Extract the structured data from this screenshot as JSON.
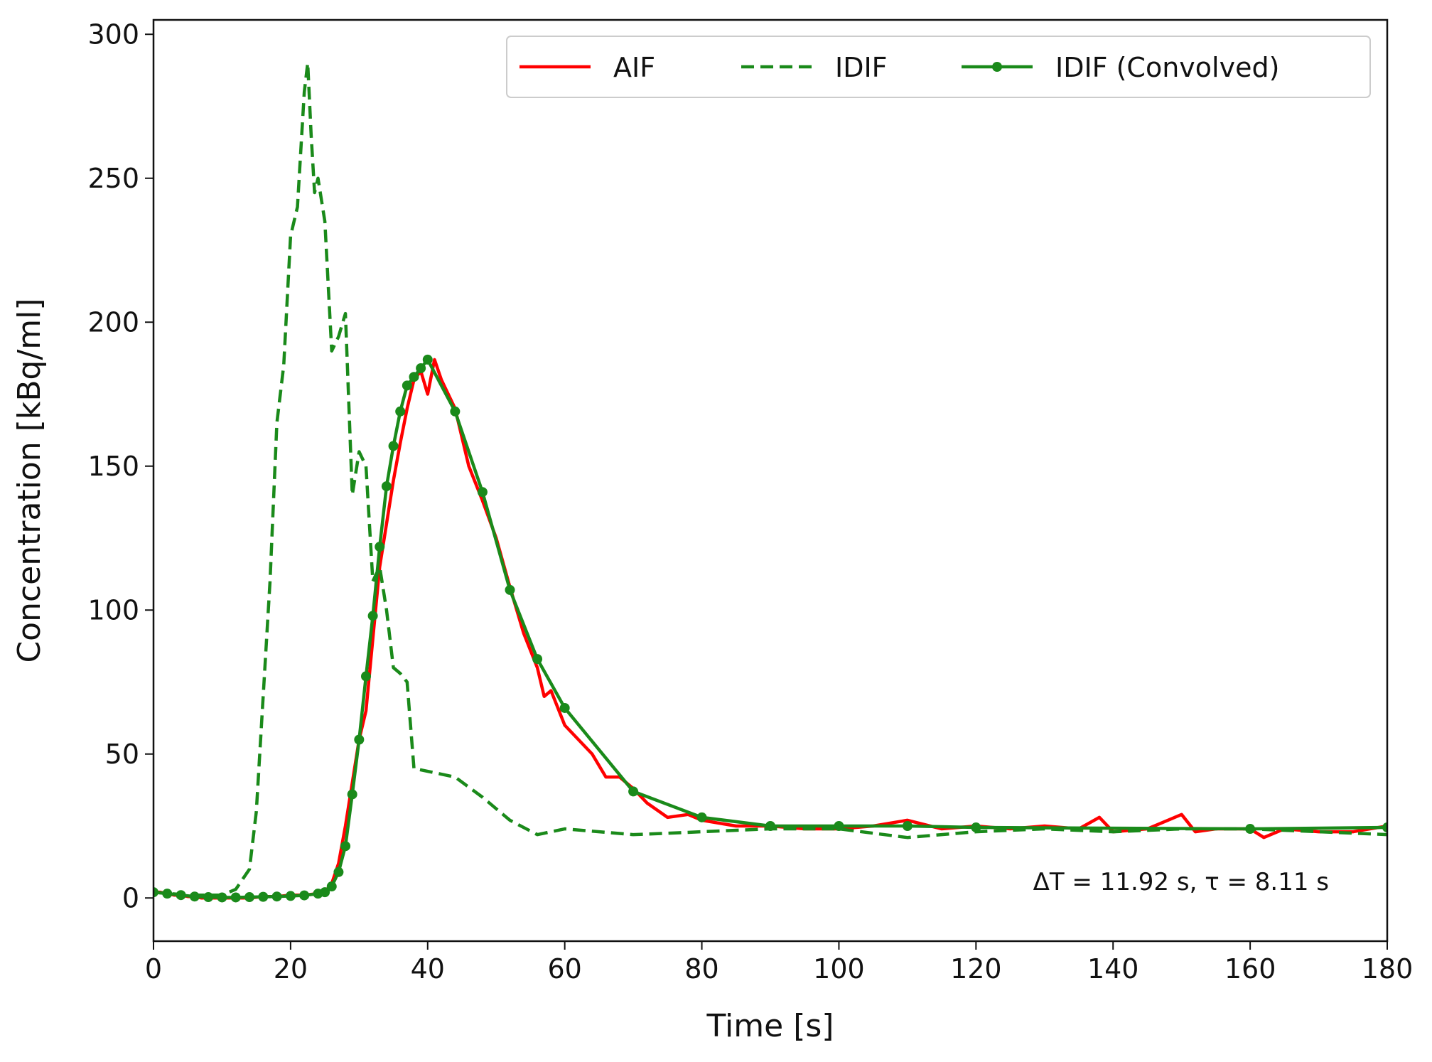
{
  "chart_data": {
    "type": "line",
    "xlabel": "Time [s]",
    "ylabel": "Concentration [kBq/ml]",
    "annotation": "ΔT = 11.92 s, τ = 8.11 s",
    "xlim": [
      0,
      180
    ],
    "ylim": [
      -15,
      305
    ],
    "xticks": [
      0,
      20,
      40,
      60,
      80,
      100,
      120,
      140,
      160,
      180
    ],
    "yticks": [
      0,
      50,
      100,
      150,
      200,
      250,
      300
    ],
    "legend": "upper right",
    "series": [
      {
        "name": "AIF",
        "color": "#ff0000",
        "style": "solid",
        "x": [
          0,
          1,
          2,
          3,
          4,
          5,
          6,
          7,
          8,
          9,
          10,
          12,
          14,
          16,
          18,
          20,
          22,
          24,
          25,
          26,
          27,
          28,
          29,
          30,
          31,
          32,
          33,
          34,
          35,
          36,
          37,
          38,
          39,
          40,
          41,
          42,
          44,
          46,
          48,
          50,
          52,
          54,
          56,
          57,
          58,
          60,
          62,
          64,
          66,
          68,
          70,
          72,
          75,
          78,
          80,
          85,
          90,
          95,
          100,
          105,
          110,
          115,
          120,
          125,
          130,
          135,
          138,
          140,
          145,
          150,
          152,
          155,
          160,
          162,
          165,
          170,
          175,
          180
        ],
        "values": [
          2,
          2,
          1.5,
          1,
          1,
          0.5,
          0.5,
          0,
          0,
          0,
          0,
          0,
          0,
          0.5,
          0.5,
          1,
          1,
          1.5,
          2,
          5,
          12,
          25,
          40,
          55,
          65,
          90,
          115,
          130,
          145,
          158,
          170,
          180,
          183,
          175,
          187,
          180,
          170,
          150,
          138,
          125,
          108,
          92,
          80,
          70,
          72,
          60,
          55,
          50,
          42,
          42,
          38,
          33,
          28,
          29,
          27,
          25,
          25,
          24,
          24,
          25,
          27,
          24,
          25,
          24,
          25,
          24,
          28,
          23,
          24,
          29,
          23,
          24,
          24,
          21,
          24,
          23,
          23,
          25
        ]
      },
      {
        "name": "IDIF",
        "color": "#1a8a1a",
        "style": "dashed",
        "x": [
          0,
          5,
          10,
          12,
          14,
          15,
          16,
          17,
          18,
          19,
          20,
          21,
          22,
          22.5,
          23,
          23.5,
          24,
          25,
          26,
          27,
          28,
          29,
          30,
          31,
          32,
          33,
          34,
          35,
          36,
          37,
          38,
          40,
          44,
          48,
          52,
          56,
          60,
          70,
          80,
          90,
          100,
          110,
          120,
          130,
          140,
          150,
          160,
          170,
          180
        ],
        "values": [
          2,
          1,
          1,
          3,
          10,
          30,
          70,
          110,
          165,
          185,
          230,
          240,
          280,
          290,
          265,
          245,
          250,
          235,
          190,
          195,
          203,
          140,
          155,
          150,
          110,
          115,
          100,
          80,
          78,
          75,
          45,
          44,
          42,
          35,
          27,
          22,
          24,
          22,
          23,
          24,
          24,
          21,
          23,
          24,
          23,
          24,
          24,
          23,
          22
        ]
      },
      {
        "name": "IDIF (Convolved)",
        "color": "#1a8a1a",
        "style": "solid",
        "markers": true,
        "x": [
          0,
          2,
          4,
          6,
          8,
          10,
          12,
          14,
          16,
          18,
          20,
          22,
          24,
          25,
          26,
          27,
          28,
          29,
          30,
          31,
          32,
          33,
          34,
          35,
          36,
          37,
          38,
          39,
          40,
          44,
          48,
          52,
          56,
          60,
          70,
          80,
          90,
          100,
          110,
          120,
          160,
          180
        ],
        "values": [
          2,
          1.5,
          1,
          0.5,
          0.3,
          0.2,
          0.2,
          0.3,
          0.4,
          0.5,
          0.7,
          0.9,
          1.5,
          2,
          4,
          9,
          18,
          36,
          55,
          77,
          98,
          122,
          143,
          157,
          169,
          178,
          181,
          184,
          187,
          169,
          141,
          107,
          83,
          66,
          37,
          28,
          25,
          25,
          25,
          24.5,
          24,
          24.5
        ]
      }
    ]
  }
}
